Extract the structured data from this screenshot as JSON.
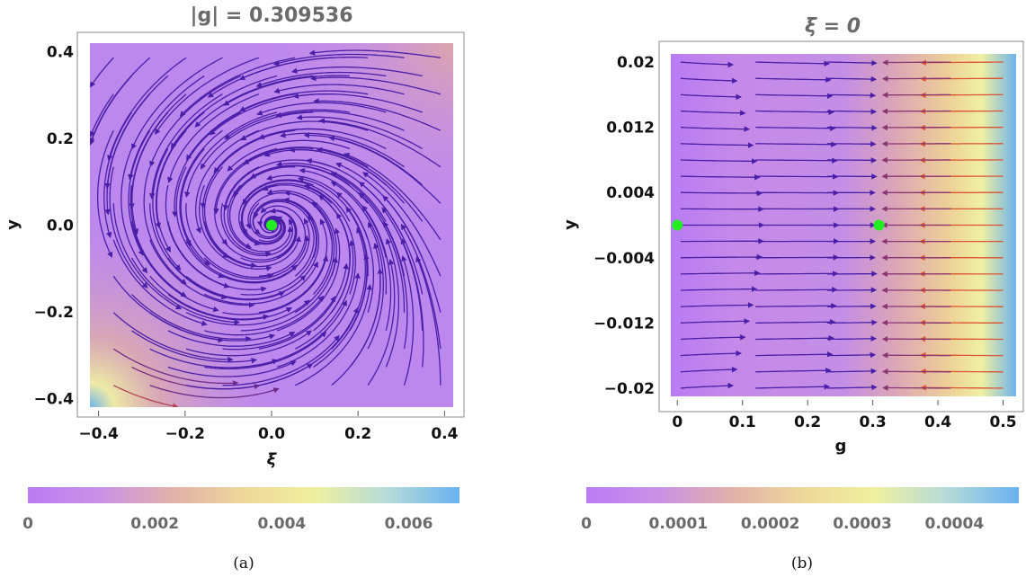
{
  "chart_data": [
    {
      "panel": "(a)",
      "type": "stream",
      "title": "|g| = 0.309536",
      "xlabel": "ξ",
      "ylabel": "y",
      "xlim": [
        -0.42,
        0.42
      ],
      "ylim": [
        -0.42,
        0.42
      ],
      "xticks": [
        -0.4,
        -0.2,
        0.0,
        0.2,
        0.4
      ],
      "xtick_labels": [
        "−0.4",
        "−0.2",
        "0.0",
        "0.2",
        "0.4"
      ],
      "yticks": [
        -0.4,
        -0.2,
        0.0,
        0.2,
        0.4
      ],
      "ytick_labels": [
        "−0.4",
        "−0.2",
        "0.0",
        "0.2",
        "0.4"
      ],
      "fixed_points": [
        {
          "x": 0.0,
          "y": 0.0
        }
      ],
      "fixed_point_color": "#22ee22",
      "colorbar": {
        "min": 0,
        "max": 0.0068,
        "ticks": [
          0,
          0.002,
          0.004,
          0.006
        ],
        "tick_labels": [
          "0",
          "0.002",
          "0.004",
          "0.006"
        ]
      }
    },
    {
      "panel": "(b)",
      "type": "stream",
      "title": "ξ = 0",
      "xlabel": "g",
      "ylabel": "y",
      "xlim": [
        -0.01,
        0.52
      ],
      "ylim": [
        -0.021,
        0.021
      ],
      "xticks": [
        0,
        0.1,
        0.2,
        0.3,
        0.4,
        0.5
      ],
      "xtick_labels": [
        "0",
        "0.1",
        "0.2",
        "0.3",
        "0.4",
        "0.5"
      ],
      "yticks": [
        0.02,
        0.012,
        0.004,
        -0.004,
        -0.012,
        -0.02
      ],
      "ytick_labels": [
        "0.02",
        "0.012",
        "0.004",
        "−0.004",
        "−0.012",
        "−0.02"
      ],
      "fixed_points": [
        {
          "x": 0.0,
          "y": 0.0
        },
        {
          "x": 0.309536,
          "y": 0.0
        }
      ],
      "fixed_point_color": "#22ee22",
      "colorbar": {
        "min": 0,
        "max": 0.00047,
        "ticks": [
          0,
          0.0001,
          0.0002,
          0.0003,
          0.0004
        ],
        "tick_labels": [
          "0",
          "0.0001",
          "0.0002",
          "0.0003",
          "0.0004"
        ]
      }
    }
  ],
  "colormap": [
    "#b97cf4",
    "#c992e6",
    "#e0b0aa",
    "#eed79a",
    "#eff0a0",
    "#b5dbd9",
    "#69b2ef"
  ],
  "stream_colors": {
    "low": "#4a1fa8",
    "high": "#f05a1e"
  },
  "captions": [
    "(a)",
    "(b)"
  ]
}
